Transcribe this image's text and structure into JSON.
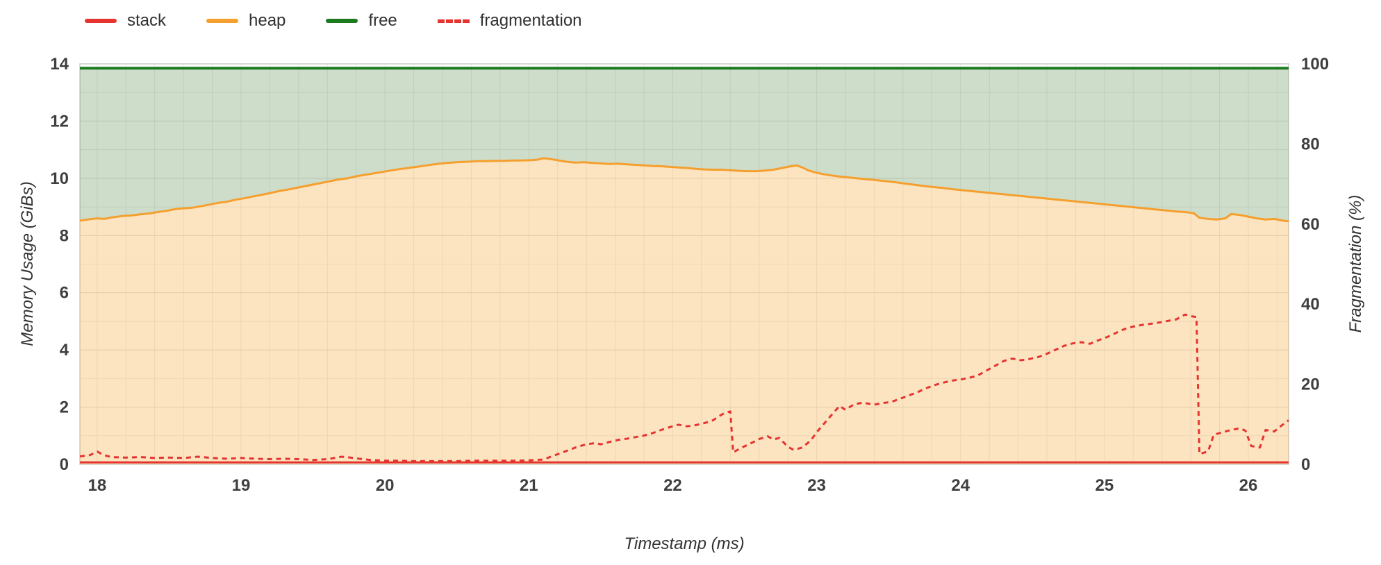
{
  "legend": {
    "items": [
      {
        "label": "stack",
        "color": "#e53430",
        "style": "solid"
      },
      {
        "label": "heap",
        "color": "#f59f2e",
        "style": "solid"
      },
      {
        "label": "free",
        "color": "#1e7a1f",
        "style": "solid"
      },
      {
        "label": "fragmentation",
        "color": "#e53430",
        "style": "dashed"
      }
    ]
  },
  "chart_data": {
    "type": "area",
    "title": "",
    "xlabel": "Timestamp (ms)",
    "ylabel_left": "Memory Usage (GiBs)",
    "ylabel_right": "Fragmentation (%)",
    "x_range": [
      17.88,
      26.28
    ],
    "y_left_range": [
      0,
      14
    ],
    "y_right_range": [
      0,
      100
    ],
    "x_ticks": [
      18,
      19,
      20,
      21,
      22,
      23,
      24,
      25,
      26
    ],
    "y_left_ticks": [
      0,
      2,
      4,
      6,
      8,
      10,
      12,
      14
    ],
    "y_right_ticks": [
      0,
      20,
      40,
      60,
      80,
      100
    ],
    "grid": true,
    "legend_position": "top-left",
    "total_memory_gib": 13.85,
    "stack_gib": 0.07,
    "colors": {
      "stack": "#e53430",
      "heap": "#f59f2e",
      "heap_fill": "rgba(246,164,49,0.30)",
      "free": "#1e7a1f",
      "free_fill": "rgba(74,134,66,0.28)",
      "fragmentation": "#e53430",
      "grid_major": "#dcdcdc",
      "grid_minor": "#ebebeb",
      "tick_text": "#3f3f3f",
      "border": "#cccccc"
    },
    "heap_points": [
      [
        17.88,
        8.52
      ],
      [
        17.95,
        8.57
      ],
      [
        18.0,
        8.6
      ],
      [
        18.05,
        8.58
      ],
      [
        18.1,
        8.63
      ],
      [
        18.17,
        8.68
      ],
      [
        18.24,
        8.7
      ],
      [
        18.3,
        8.74
      ],
      [
        18.36,
        8.77
      ],
      [
        18.42,
        8.82
      ],
      [
        18.48,
        8.86
      ],
      [
        18.54,
        8.92
      ],
      [
        18.6,
        8.95
      ],
      [
        18.66,
        8.97
      ],
      [
        18.72,
        9.02
      ],
      [
        18.78,
        9.08
      ],
      [
        18.84,
        9.14
      ],
      [
        18.9,
        9.18
      ],
      [
        18.96,
        9.25
      ],
      [
        19.02,
        9.3
      ],
      [
        19.08,
        9.36
      ],
      [
        19.14,
        9.42
      ],
      [
        19.2,
        9.48
      ],
      [
        19.26,
        9.55
      ],
      [
        19.32,
        9.6
      ],
      [
        19.38,
        9.66
      ],
      [
        19.44,
        9.72
      ],
      [
        19.5,
        9.78
      ],
      [
        19.56,
        9.84
      ],
      [
        19.62,
        9.9
      ],
      [
        19.68,
        9.96
      ],
      [
        19.74,
        10.0
      ],
      [
        19.8,
        10.07
      ],
      [
        19.86,
        10.12
      ],
      [
        19.92,
        10.17
      ],
      [
        19.98,
        10.22
      ],
      [
        20.04,
        10.27
      ],
      [
        20.1,
        10.32
      ],
      [
        20.16,
        10.36
      ],
      [
        20.22,
        10.4
      ],
      [
        20.28,
        10.44
      ],
      [
        20.34,
        10.49
      ],
      [
        20.4,
        10.52
      ],
      [
        20.46,
        10.55
      ],
      [
        20.52,
        10.57
      ],
      [
        20.58,
        10.58
      ],
      [
        20.64,
        10.6
      ],
      [
        20.7,
        10.6
      ],
      [
        20.76,
        10.61
      ],
      [
        20.82,
        10.61
      ],
      [
        20.88,
        10.62
      ],
      [
        20.94,
        10.62
      ],
      [
        21.0,
        10.63
      ],
      [
        21.06,
        10.65
      ],
      [
        21.1,
        10.7
      ],
      [
        21.14,
        10.68
      ],
      [
        21.2,
        10.63
      ],
      [
        21.26,
        10.58
      ],
      [
        21.32,
        10.55
      ],
      [
        21.38,
        10.56
      ],
      [
        21.44,
        10.54
      ],
      [
        21.5,
        10.52
      ],
      [
        21.56,
        10.5
      ],
      [
        21.62,
        10.51
      ],
      [
        21.68,
        10.49
      ],
      [
        21.74,
        10.47
      ],
      [
        21.8,
        10.45
      ],
      [
        21.86,
        10.43
      ],
      [
        21.92,
        10.42
      ],
      [
        21.98,
        10.4
      ],
      [
        22.04,
        10.38
      ],
      [
        22.1,
        10.36
      ],
      [
        22.16,
        10.33
      ],
      [
        22.22,
        10.31
      ],
      [
        22.28,
        10.3
      ],
      [
        22.34,
        10.3
      ],
      [
        22.4,
        10.28
      ],
      [
        22.46,
        10.26
      ],
      [
        22.52,
        10.25
      ],
      [
        22.58,
        10.25
      ],
      [
        22.64,
        10.27
      ],
      [
        22.7,
        10.3
      ],
      [
        22.76,
        10.36
      ],
      [
        22.82,
        10.42
      ],
      [
        22.86,
        10.45
      ],
      [
        22.9,
        10.38
      ],
      [
        22.94,
        10.28
      ],
      [
        22.98,
        10.22
      ],
      [
        23.04,
        10.15
      ],
      [
        23.1,
        10.1
      ],
      [
        23.16,
        10.06
      ],
      [
        23.22,
        10.03
      ],
      [
        23.28,
        10.0
      ],
      [
        23.34,
        9.97
      ],
      [
        23.4,
        9.94
      ],
      [
        23.46,
        9.91
      ],
      [
        23.52,
        9.88
      ],
      [
        23.58,
        9.84
      ],
      [
        23.64,
        9.8
      ],
      [
        23.7,
        9.76
      ],
      [
        23.76,
        9.72
      ],
      [
        23.82,
        9.69
      ],
      [
        23.88,
        9.66
      ],
      [
        23.94,
        9.62
      ],
      [
        24.0,
        9.59
      ],
      [
        24.06,
        9.56
      ],
      [
        24.12,
        9.53
      ],
      [
        24.18,
        9.5
      ],
      [
        24.24,
        9.47
      ],
      [
        24.3,
        9.44
      ],
      [
        24.36,
        9.41
      ],
      [
        24.42,
        9.38
      ],
      [
        24.48,
        9.35
      ],
      [
        24.54,
        9.32
      ],
      [
        24.6,
        9.29
      ],
      [
        24.66,
        9.26
      ],
      [
        24.72,
        9.23
      ],
      [
        24.78,
        9.2
      ],
      [
        24.84,
        9.17
      ],
      [
        24.9,
        9.14
      ],
      [
        24.96,
        9.11
      ],
      [
        25.02,
        9.08
      ],
      [
        25.08,
        9.05
      ],
      [
        25.14,
        9.02
      ],
      [
        25.2,
        8.99
      ],
      [
        25.26,
        8.96
      ],
      [
        25.32,
        8.93
      ],
      [
        25.38,
        8.9
      ],
      [
        25.44,
        8.87
      ],
      [
        25.5,
        8.84
      ],
      [
        25.56,
        8.82
      ],
      [
        25.62,
        8.78
      ],
      [
        25.66,
        8.62
      ],
      [
        25.72,
        8.58
      ],
      [
        25.78,
        8.56
      ],
      [
        25.84,
        8.6
      ],
      [
        25.88,
        8.75
      ],
      [
        25.94,
        8.72
      ],
      [
        26.0,
        8.66
      ],
      [
        26.06,
        8.6
      ],
      [
        26.12,
        8.56
      ],
      [
        26.18,
        8.58
      ],
      [
        26.24,
        8.52
      ],
      [
        26.28,
        8.5
      ]
    ],
    "fragmentation_points": [
      [
        17.88,
        2.0
      ],
      [
        17.95,
        2.3
      ],
      [
        18.0,
        3.2
      ],
      [
        18.04,
        2.4
      ],
      [
        18.1,
        1.8
      ],
      [
        18.2,
        1.7
      ],
      [
        18.3,
        1.8
      ],
      [
        18.4,
        1.6
      ],
      [
        18.5,
        1.7
      ],
      [
        18.6,
        1.6
      ],
      [
        18.7,
        1.9
      ],
      [
        18.8,
        1.6
      ],
      [
        18.9,
        1.4
      ],
      [
        19.0,
        1.6
      ],
      [
        19.1,
        1.4
      ],
      [
        19.2,
        1.3
      ],
      [
        19.3,
        1.4
      ],
      [
        19.4,
        1.3
      ],
      [
        19.5,
        1.1
      ],
      [
        19.6,
        1.3
      ],
      [
        19.7,
        1.9
      ],
      [
        19.76,
        1.7
      ],
      [
        19.82,
        1.4
      ],
      [
        19.9,
        1.1
      ],
      [
        20.0,
        0.9
      ],
      [
        20.1,
        0.9
      ],
      [
        20.2,
        0.8
      ],
      [
        20.3,
        0.8
      ],
      [
        20.4,
        0.8
      ],
      [
        20.5,
        0.8
      ],
      [
        20.6,
        0.9
      ],
      [
        20.7,
        0.9
      ],
      [
        20.8,
        0.9
      ],
      [
        20.9,
        0.9
      ],
      [
        21.0,
        1.0
      ],
      [
        21.1,
        1.2
      ],
      [
        21.16,
        2.0
      ],
      [
        21.22,
        2.8
      ],
      [
        21.28,
        3.6
      ],
      [
        21.34,
        4.4
      ],
      [
        21.4,
        5.0
      ],
      [
        21.46,
        5.3
      ],
      [
        21.5,
        5.0
      ],
      [
        21.56,
        5.6
      ],
      [
        21.62,
        6.1
      ],
      [
        21.68,
        6.4
      ],
      [
        21.74,
        6.8
      ],
      [
        21.8,
        7.2
      ],
      [
        21.86,
        7.8
      ],
      [
        21.92,
        8.6
      ],
      [
        21.98,
        9.3
      ],
      [
        22.04,
        9.9
      ],
      [
        22.1,
        9.5
      ],
      [
        22.16,
        9.8
      ],
      [
        22.22,
        10.3
      ],
      [
        22.28,
        11.0
      ],
      [
        22.32,
        12.0
      ],
      [
        22.36,
        12.8
      ],
      [
        22.4,
        13.2
      ],
      [
        22.42,
        3.0
      ],
      [
        22.48,
        4.2
      ],
      [
        22.54,
        5.2
      ],
      [
        22.6,
        6.3
      ],
      [
        22.66,
        7.0
      ],
      [
        22.7,
        6.2
      ],
      [
        22.74,
        6.6
      ],
      [
        22.8,
        4.4
      ],
      [
        22.84,
        3.6
      ],
      [
        22.9,
        4.2
      ],
      [
        22.96,
        6.0
      ],
      [
        23.0,
        8.0
      ],
      [
        23.06,
        10.5
      ],
      [
        23.12,
        13.0
      ],
      [
        23.16,
        14.6
      ],
      [
        23.2,
        13.6
      ],
      [
        23.26,
        15.0
      ],
      [
        23.32,
        15.4
      ],
      [
        23.4,
        14.9
      ],
      [
        23.46,
        15.3
      ],
      [
        23.52,
        15.6
      ],
      [
        23.58,
        16.4
      ],
      [
        23.64,
        17.2
      ],
      [
        23.7,
        18.0
      ],
      [
        23.76,
        19.0
      ],
      [
        23.82,
        19.8
      ],
      [
        23.88,
        20.4
      ],
      [
        23.94,
        20.9
      ],
      [
        24.0,
        21.2
      ],
      [
        24.06,
        21.6
      ],
      [
        24.12,
        22.2
      ],
      [
        24.18,
        23.4
      ],
      [
        24.24,
        24.6
      ],
      [
        24.3,
        25.8
      ],
      [
        24.36,
        26.4
      ],
      [
        24.42,
        26.0
      ],
      [
        24.48,
        26.3
      ],
      [
        24.54,
        26.8
      ],
      [
        24.6,
        27.6
      ],
      [
        24.66,
        28.6
      ],
      [
        24.72,
        29.6
      ],
      [
        24.78,
        30.2
      ],
      [
        24.84,
        30.5
      ],
      [
        24.9,
        30.1
      ],
      [
        24.96,
        31.0
      ],
      [
        25.02,
        31.8
      ],
      [
        25.08,
        32.8
      ],
      [
        25.14,
        33.8
      ],
      [
        25.2,
        34.4
      ],
      [
        25.26,
        34.8
      ],
      [
        25.32,
        35.1
      ],
      [
        25.38,
        35.4
      ],
      [
        25.44,
        35.8
      ],
      [
        25.5,
        36.2
      ],
      [
        25.56,
        37.4
      ],
      [
        25.6,
        37.0
      ],
      [
        25.64,
        36.8
      ],
      [
        25.66,
        2.6
      ],
      [
        25.72,
        3.2
      ],
      [
        25.76,
        7.4
      ],
      [
        25.82,
        8.0
      ],
      [
        25.88,
        8.6
      ],
      [
        25.94,
        9.0
      ],
      [
        25.98,
        8.4
      ],
      [
        26.02,
        4.6
      ],
      [
        26.08,
        4.2
      ],
      [
        26.12,
        8.6
      ],
      [
        26.18,
        8.2
      ],
      [
        26.22,
        9.4
      ],
      [
        26.28,
        11.0
      ]
    ]
  }
}
